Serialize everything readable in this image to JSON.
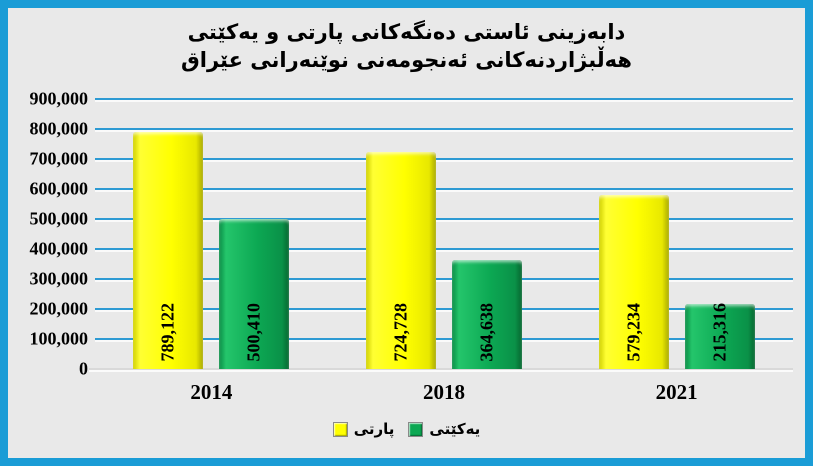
{
  "theme": {
    "frame_border_color": "#1a9cd6",
    "background_color": "#e9e9e9",
    "gridline_color": "#2d9ad3",
    "baseline_color": "#d9d9d9",
    "text_color": "#000000"
  },
  "chart_data": {
    "type": "bar",
    "title": "دابەزینی ئاستی دەنگەکانی پارتی و یەکێتی هەڵبژاردنەکانی ئەنجومەنی نوێنەرانی عێراق",
    "title_lines": [
      "دابەزینی ئاستی دەنگەکانی پارتی و یەکێتی",
      "هەڵبژاردنەکانی ئەنجومەنی نوێنەرانی عێراق"
    ],
    "categories": [
      "2014",
      "2018",
      "2021"
    ],
    "series": [
      {
        "name": "پارتی",
        "color": "#ffff00",
        "values": [
          789122,
          724728,
          579234
        ],
        "labels": [
          "789,122",
          "724,728",
          "579,234"
        ]
      },
      {
        "name": "یەکێتی",
        "color": "#0ca853",
        "values": [
          500410,
          364638,
          215316
        ],
        "labels": [
          "500,410",
          "364,638",
          "215,316"
        ]
      }
    ],
    "xlabel": "",
    "ylabel": "",
    "ylim": [
      0,
      900000
    ],
    "ytick_step": 100000,
    "yticks": [
      "900,000",
      "800,000",
      "700,000",
      "600,000",
      "500,000",
      "400,000",
      "300,000",
      "200,000",
      "100,000",
      "0"
    ],
    "grid": true,
    "value_label_rotation": 90,
    "legend_position": "bottom"
  }
}
